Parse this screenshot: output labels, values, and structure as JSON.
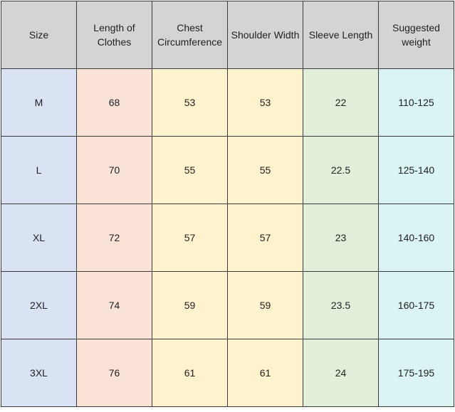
{
  "table": {
    "header": [
      "Size",
      "Length of Clothes",
      "Chest Circumference",
      "Shoulder Width",
      "Sleeve Length",
      "Suggested weight"
    ],
    "rows": [
      [
        "M",
        68,
        53,
        53,
        22,
        "110-125"
      ],
      [
        "L",
        70,
        55,
        55,
        22.5,
        "125-140"
      ],
      [
        "XL",
        72,
        57,
        57,
        23,
        "140-160"
      ],
      [
        "2XL",
        74,
        59,
        59,
        23.5,
        "160-175"
      ],
      [
        "3XL",
        76,
        61,
        61,
        24,
        "175-195"
      ]
    ]
  }
}
